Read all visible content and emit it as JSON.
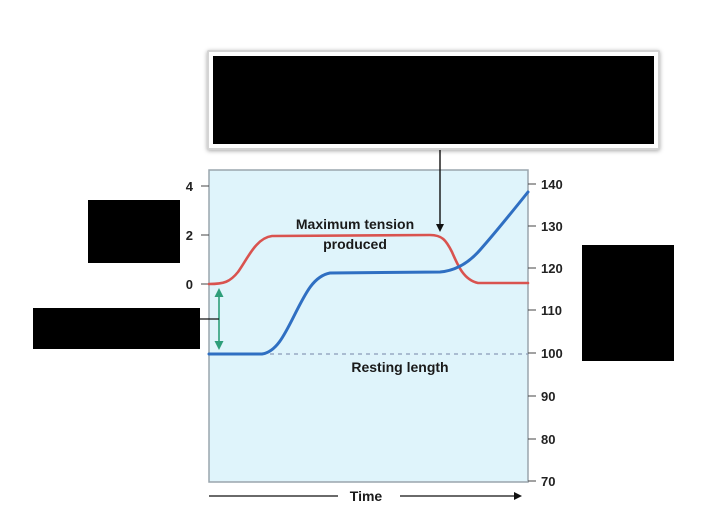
{
  "left_axis": {
    "ticks": [
      "4",
      "2",
      "0"
    ]
  },
  "right_axis": {
    "ticks": [
      "140",
      "130",
      "120",
      "110",
      "100",
      "90",
      "80",
      "70"
    ]
  },
  "annotations": {
    "max_tension_line1": "Maximum tension",
    "max_tension_line2": "produced",
    "resting_length": "Resting length",
    "time": "Time"
  },
  "colors": {
    "plot_background": "#dff4fb",
    "tension_curve": "#d9534f",
    "length_curve": "#2f6fc2",
    "change_arrow": "#2e9e7a",
    "resting_line": "#8a9ab8"
  },
  "callouts": {
    "redacted_boxes": 4,
    "callout_box_redacted": true
  }
}
